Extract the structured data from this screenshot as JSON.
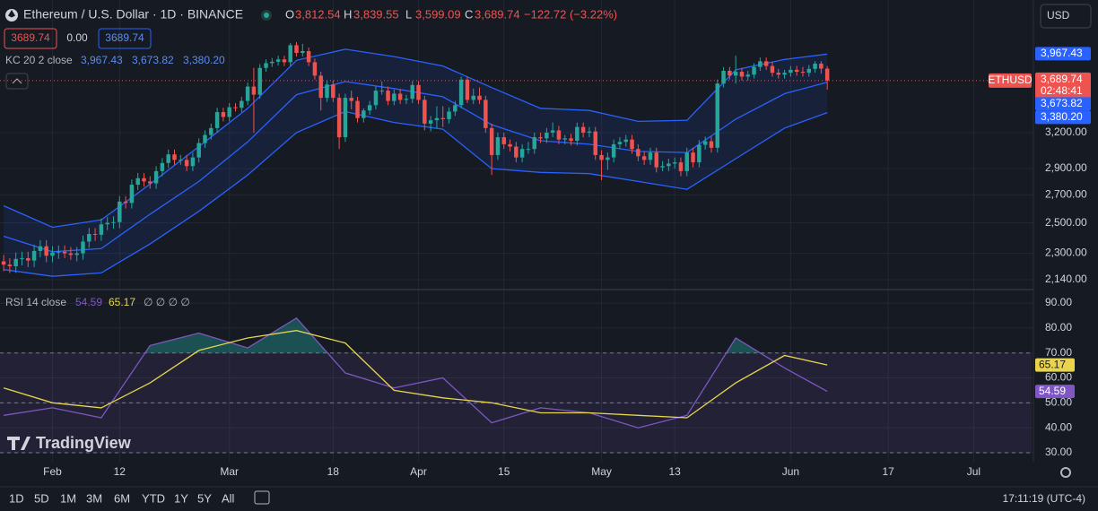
{
  "header": {
    "symbol": "Ethereum / U.S. Dollar · 1D · BINANCE",
    "ohlc": [
      {
        "key": "O",
        "value": "3,812.54"
      },
      {
        "key": "H",
        "value": "3,839.55"
      },
      {
        "key": "L",
        "value": "3,599.09"
      },
      {
        "key": "C",
        "value": "3,689.74"
      }
    ],
    "change": "−122.72 (−3.22%)",
    "sell": "3689.74",
    "spread": "0.00",
    "buy": "3689.74",
    "currency": "USD"
  },
  "toolbar": {
    "ranges": [
      "1D",
      "5D",
      "1M",
      "3M",
      "6M",
      "YTD",
      "1Y",
      "5Y",
      "All"
    ],
    "clock": "17:11:19 (UTC-4)"
  },
  "brand": "TradingView",
  "chart_data": [
    {
      "type": "candlestick",
      "open": [
        2250,
        2230,
        2220,
        2265,
        2270,
        2255,
        2315,
        2345,
        2285,
        2305,
        2310,
        2300,
        2290,
        2300,
        2375,
        2425,
        2420,
        2490,
        2500,
        2505,
        2650,
        2640,
        2775,
        2825,
        2800,
        2785,
        2880,
        2945,
        3015,
        2970,
        2970,
        2920,
        2990,
        3110,
        3180,
        3240,
        3385,
        3340,
        3430,
        3425,
        3490,
        3630,
        3550,
        3820,
        3870,
        3885,
        3910,
        3880,
        4065,
        3980,
        4000,
        3880,
        3740,
        3520,
        3650,
        3520,
        3160,
        3520,
        3490,
        3330,
        3400,
        3450,
        3590,
        3590,
        3490,
        3560,
        3500,
        3510,
        3645,
        3500,
        3280,
        3310,
        3330,
        3320,
        3390,
        3450,
        3700,
        3500,
        3540,
        3500,
        3240,
        3010,
        3160,
        3100,
        3080,
        2990,
        3060,
        3060,
        3160,
        3150,
        3200,
        3220,
        3140,
        3150,
        3130,
        3250,
        3200,
        3210,
        3010,
        2970,
        2990,
        3100,
        3120,
        3140,
        3060,
        3000,
        2970,
        3030,
        2910,
        2920,
        2940,
        2950,
        2880,
        3030,
        2950,
        3095,
        3125,
        3070,
        3660,
        3790,
        3740,
        3780,
        3730,
        3750,
        3830,
        3890,
        3840,
        3770,
        3750,
        3770,
        3800,
        3780,
        3770,
        3810,
        3865,
        3812.54
      ],
      "high": [
        2290,
        2270,
        2305,
        2310,
        2310,
        2355,
        2385,
        2385,
        2345,
        2350,
        2350,
        2340,
        2340,
        2415,
        2465,
        2465,
        2530,
        2540,
        2545,
        2690,
        2690,
        2815,
        2865,
        2865,
        2840,
        2920,
        2985,
        3055,
        3055,
        3010,
        3010,
        3030,
        3150,
        3220,
        3280,
        3425,
        3425,
        3470,
        3470,
        3530,
        3670,
        3820,
        3860,
        3910,
        3925,
        3950,
        3950,
        4090,
        4100,
        4080,
        4040,
        3920,
        3780,
        3690,
        3690,
        3560,
        3560,
        3590,
        3530,
        3420,
        3490,
        3630,
        3680,
        3630,
        3600,
        3600,
        3550,
        3685,
        3685,
        3540,
        3350,
        3440,
        3440,
        3430,
        3490,
        3730,
        3730,
        3610,
        3620,
        3540,
        3280,
        3200,
        3200,
        3140,
        3120,
        3100,
        3120,
        3200,
        3200,
        3240,
        3290,
        3260,
        3180,
        3190,
        3290,
        3290,
        3250,
        3250,
        3050,
        3030,
        3140,
        3160,
        3180,
        3180,
        3100,
        3040,
        3070,
        3070,
        2960,
        2980,
        2990,
        2990,
        3070,
        3070,
        3135,
        3165,
        3165,
        3700,
        3830,
        3830,
        3950,
        3820,
        3790,
        3870,
        3930,
        3930,
        3880,
        3810,
        3800,
        3840,
        3840,
        3830,
        3850,
        3890,
        3890,
        3839.55
      ],
      "low": [
        2190,
        2180,
        2180,
        2225,
        2215,
        2215,
        2275,
        2245,
        2245,
        2265,
        2270,
        2260,
        2250,
        2260,
        2335,
        2380,
        2380,
        2450,
        2460,
        2465,
        2600,
        2600,
        2735,
        2760,
        2745,
        2745,
        2840,
        2905,
        2930,
        2930,
        2880,
        2880,
        2950,
        3070,
        3140,
        3200,
        3300,
        3300,
        3390,
        3385,
        3450,
        3200,
        3510,
        3780,
        3830,
        3845,
        3840,
        3840,
        3940,
        3940,
        3840,
        3700,
        3400,
        3480,
        3480,
        3060,
        3120,
        3410,
        3290,
        3290,
        3360,
        3410,
        3550,
        3450,
        3450,
        3460,
        3460,
        3470,
        3460,
        3220,
        3210,
        3240,
        3250,
        3280,
        3350,
        3420,
        3470,
        3460,
        3460,
        3200,
        2850,
        2970,
        3060,
        3040,
        2950,
        2950,
        3020,
        3020,
        3110,
        3110,
        3160,
        3100,
        3100,
        3090,
        3090,
        3160,
        3160,
        2970,
        2810,
        2890,
        2950,
        3060,
        3080,
        3020,
        2960,
        2930,
        2930,
        2870,
        2880,
        2880,
        2900,
        2840,
        2840,
        2910,
        2910,
        3055,
        3030,
        3030,
        3620,
        3700,
        3660,
        3690,
        3690,
        3710,
        3790,
        3800,
        3730,
        3710,
        3710,
        3730,
        3740,
        3730,
        3730,
        3770,
        3760,
        3599.09
      ],
      "close": [
        2230,
        2220,
        2265,
        2270,
        2255,
        2315,
        2345,
        2285,
        2305,
        2310,
        2300,
        2290,
        2300,
        2375,
        2425,
        2420,
        2490,
        2500,
        2505,
        2650,
        2640,
        2775,
        2825,
        2800,
        2785,
        2880,
        2945,
        3015,
        2970,
        2970,
        2920,
        2990,
        3110,
        3180,
        3240,
        3385,
        3340,
        3430,
        3425,
        3490,
        3630,
        3550,
        3820,
        3870,
        3885,
        3910,
        3880,
        4065,
        3980,
        4000,
        3880,
        3740,
        3520,
        3650,
        3520,
        3160,
        3520,
        3490,
        3330,
        3400,
        3450,
        3590,
        3590,
        3490,
        3560,
        3500,
        3510,
        3645,
        3500,
        3280,
        3310,
        3330,
        3320,
        3390,
        3450,
        3700,
        3500,
        3540,
        3500,
        3240,
        3010,
        3160,
        3100,
        3080,
        2990,
        3060,
        3060,
        3160,
        3150,
        3200,
        3220,
        3140,
        3150,
        3130,
        3250,
        3200,
        3210,
        3010,
        2970,
        2990,
        3100,
        3120,
        3140,
        3060,
        3000,
        2970,
        3030,
        2910,
        2920,
        2940,
        2950,
        2880,
        3030,
        2950,
        3095,
        3125,
        3070,
        3660,
        3790,
        3740,
        3780,
        3730,
        3750,
        3830,
        3890,
        3840,
        3770,
        3750,
        3770,
        3800,
        3780,
        3770,
        3810,
        3865,
        3812.54,
        3689.74
      ],
      "up_color": "#26a69a",
      "down_color": "#ef5350",
      "log_scale": true,
      "ylim": [
        2088,
        4600
      ],
      "yticks": [
        {
          "value": 2140,
          "label": "2,140.00"
        },
        {
          "value": 2300,
          "label": "2,300.00"
        },
        {
          "value": 2500,
          "label": "2,500.00"
        },
        {
          "value": 2700,
          "label": "2,700.00"
        },
        {
          "value": 2900,
          "label": "2,900.00"
        },
        {
          "value": 3200,
          "label": "3,200.00"
        }
      ],
      "xlim": [
        -0.6,
        168.5
      ],
      "xticks": [
        {
          "value": 8,
          "label": "Feb"
        },
        {
          "value": 19,
          "label": "12"
        },
        {
          "value": 37,
          "label": "Mar"
        },
        {
          "value": 54,
          "label": "18"
        },
        {
          "value": 68,
          "label": "Apr"
        },
        {
          "value": 82,
          "label": "15"
        },
        {
          "value": 98,
          "label": "May"
        },
        {
          "value": 110,
          "label": "13"
        },
        {
          "value": 129,
          "label": "Jun"
        },
        {
          "value": 145,
          "label": "17"
        },
        {
          "value": 159,
          "label": "Jul"
        }
      ],
      "grid": true,
      "indicator": {
        "name": "KC 20 2 close",
        "fill": "rgba(41,98,255,0.10)",
        "series": [
          {
            "color": "#2962ff",
            "x": [
              0,
              8,
              16,
              24,
              32,
              40,
              48,
              56,
              64,
              72,
              80,
              88,
              96,
              104,
              112,
              120,
              128,
              135
            ],
            "values": [
              2620,
              2470,
              2520,
              2780,
              3080,
              3420,
              3900,
              4020,
              3940,
              3840,
              3620,
              3420,
              3400,
              3300,
              3310,
              3800,
              3910,
              3967.43
            ],
            "last_label": "3,967.43"
          },
          {
            "color": "#2962ff",
            "x": [
              0,
              8,
              16,
              24,
              32,
              40,
              48,
              56,
              64,
              72,
              80,
              88,
              96,
              104,
              112,
              120,
              128,
              135
            ],
            "values": [
              2410,
              2310,
              2330,
              2560,
              2800,
              3120,
              3550,
              3680,
              3610,
              3530,
              3270,
              3130,
              3100,
              3040,
              3030,
              3320,
              3560,
              3673.82
            ],
            "last_label": "3,673.82"
          },
          {
            "color": "#2962ff",
            "x": [
              0,
              8,
              16,
              24,
              32,
              40,
              48,
              56,
              64,
              72,
              80,
              88,
              96,
              104,
              112,
              120,
              128,
              135
            ],
            "values": [
              2200,
              2160,
              2180,
              2360,
              2580,
              2850,
              3200,
              3390,
              3290,
              3230,
              2900,
              2870,
              2860,
              2800,
              2740,
              2980,
              3240,
              3380.2
            ],
            "last_label": "3,380.20"
          }
        ]
      },
      "last_price": {
        "symbol": "ETHUSD",
        "label": "3,689.74",
        "countdown": "02:48:41",
        "color": "#ef5350"
      }
    },
    {
      "type": "line",
      "name": "RSI 14 close",
      "flags": "∅ ∅ ∅ ∅",
      "xlim": [
        -0.6,
        168.5
      ],
      "ylim": [
        26.4,
        94.7
      ],
      "yticks": [
        {
          "value": 90,
          "label": "90.00"
        },
        {
          "value": 80,
          "label": "80.00"
        },
        {
          "value": 70,
          "label": "70.00"
        },
        {
          "value": 60,
          "label": "60.00"
        },
        {
          "value": 50,
          "label": "50.00"
        },
        {
          "value": 40,
          "label": "40.00"
        },
        {
          "value": 30,
          "label": "30.00"
        }
      ],
      "levels": [
        70,
        50,
        30
      ],
      "band_color": "rgba(126,87,194,0.12)",
      "overbought_fill": "rgba(38,166,154,0.40)",
      "series": [
        {
          "color": "#7e57c2",
          "x": [
            0,
            8,
            16,
            24,
            32,
            40,
            48,
            56,
            64,
            72,
            80,
            88,
            96,
            104,
            112,
            120,
            128,
            135
          ],
          "values": [
            45,
            48,
            44,
            73,
            78,
            72,
            84,
            62,
            56,
            60,
            42,
            48,
            46,
            40,
            45,
            76,
            64,
            54.59
          ],
          "last_label": "54.59"
        },
        {
          "color": "#e8d44d",
          "x": [
            0,
            8,
            16,
            24,
            32,
            40,
            48,
            56,
            64,
            72,
            80,
            88,
            96,
            104,
            112,
            120,
            128,
            135
          ],
          "values": [
            56,
            50,
            48,
            58,
            71,
            76,
            79,
            74,
            55,
            52,
            50,
            46,
            46,
            45,
            44,
            58,
            69,
            65.17
          ],
          "last_label": "65.17"
        }
      ]
    }
  ]
}
